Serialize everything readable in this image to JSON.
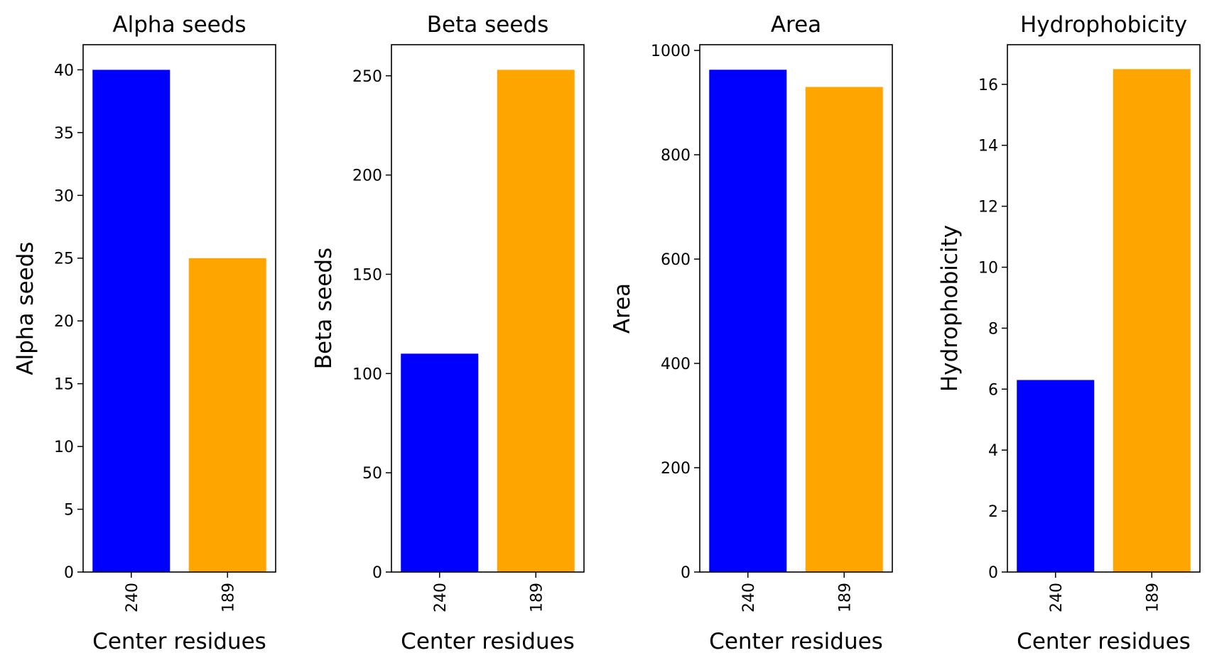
{
  "chart_data": [
    {
      "type": "bar",
      "title": "Alpha seeds",
      "xlabel": "Center residues",
      "ylabel": "Alpha seeds",
      "categories": [
        "240",
        "189"
      ],
      "values": [
        40,
        25
      ],
      "colors": [
        "#0000ff",
        "#ffa500"
      ],
      "ylim": [
        0,
        42
      ],
      "yticks": [
        0,
        5,
        10,
        15,
        20,
        25,
        30,
        35,
        40
      ],
      "grid": false
    },
    {
      "type": "bar",
      "title": "Beta seeds",
      "xlabel": "Center residues",
      "ylabel": "Beta seeds",
      "categories": [
        "240",
        "189"
      ],
      "values": [
        110,
        253
      ],
      "colors": [
        "#0000ff",
        "#ffa500"
      ],
      "ylim": [
        0,
        265.65
      ],
      "yticks": [
        0,
        50,
        100,
        150,
        200,
        250
      ],
      "grid": false
    },
    {
      "type": "bar",
      "title": "Area",
      "xlabel": "Center residues",
      "ylabel": "Area",
      "categories": [
        "240",
        "189"
      ],
      "values": [
        963,
        930
      ],
      "colors": [
        "#0000ff",
        "#ffa500"
      ],
      "ylim": [
        0,
        1011
      ],
      "yticks": [
        0,
        200,
        400,
        600,
        800,
        1000
      ],
      "grid": false
    },
    {
      "type": "bar",
      "title": "Hydrophobicity",
      "xlabel": "Center residues",
      "ylabel": "Hydrophobicity",
      "categories": [
        "240",
        "189"
      ],
      "values": [
        6.3,
        16.5
      ],
      "colors": [
        "#0000ff",
        "#ffa500"
      ],
      "ylim": [
        0,
        17.3
      ],
      "yticks": [
        0,
        2,
        4,
        6,
        8,
        10,
        12,
        14,
        16
      ],
      "grid": false
    }
  ]
}
